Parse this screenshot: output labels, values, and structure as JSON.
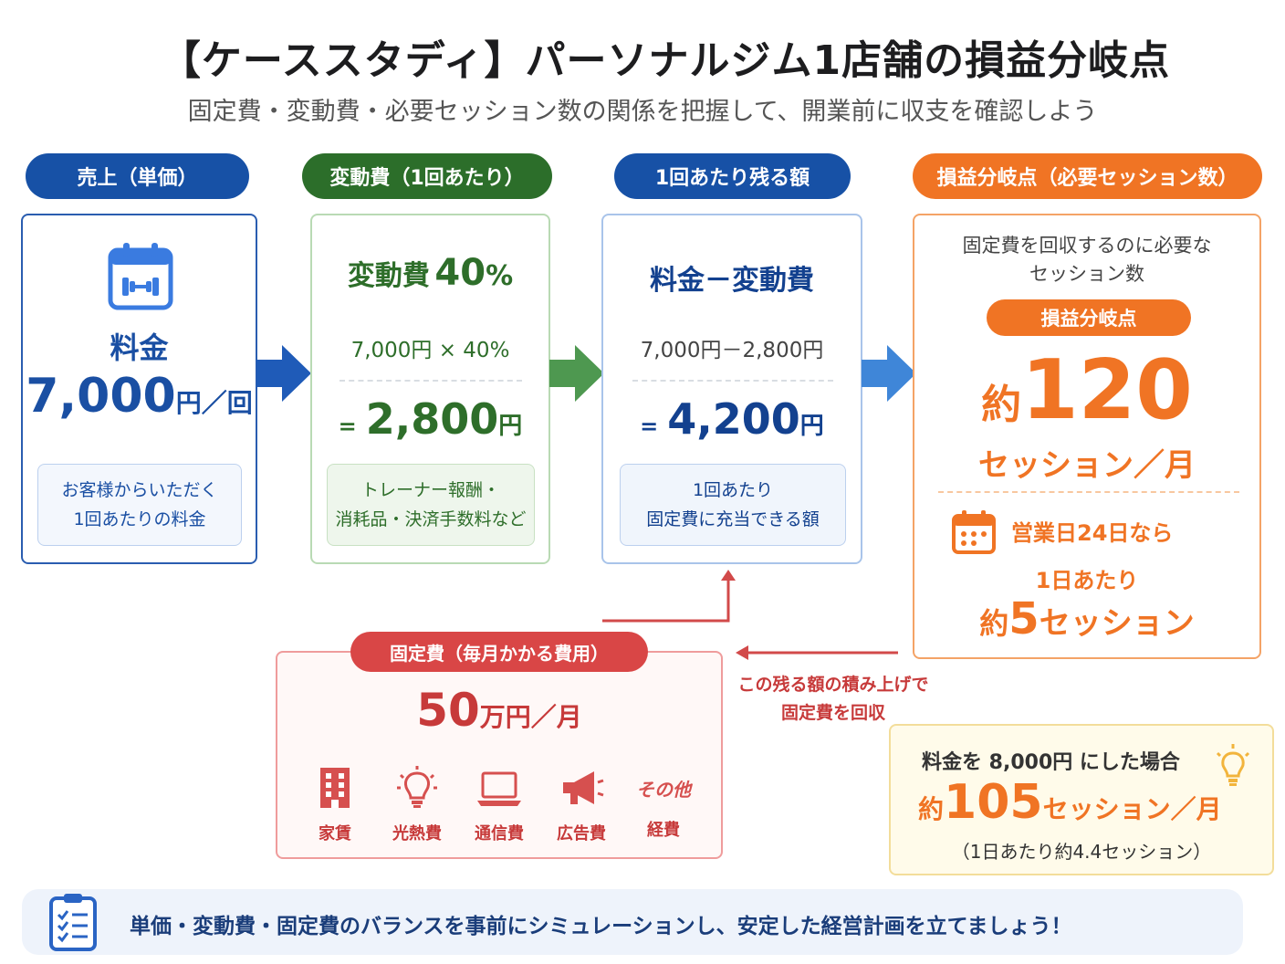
{
  "title": "【ケーススタディ】パーソナルジム1店舗の損益分岐点",
  "subtitle": "固定費・変動費・必要セッション数の関係を把握して、開業前に収支を確認しよう",
  "colors": {
    "blue": "#1a4fa3",
    "green": "#2e6e2a",
    "navy": "#13418f",
    "orange": "#f07424",
    "red": "#c73a3a"
  },
  "sales": {
    "header": "売上（単価）",
    "icon": "calendar-dumbbell-icon",
    "label": "料金",
    "amount": "7,000",
    "unit": "円／回",
    "note_line1": "お客様からいただく",
    "note_line2": "1回あたりの料金"
  },
  "variable": {
    "header": "変動費（1回あたり）",
    "title_text": "変動費",
    "rate": "40",
    "rate_unit": "%",
    "formula": "7,000円 × 40%",
    "eq": "=",
    "result": "2,800",
    "result_unit": "円",
    "note_line1": "トレーナー報酬・",
    "note_line2": "消耗品・決済手数料など"
  },
  "remain": {
    "header": "1回あたり残る額",
    "title_text": "料金－変動費",
    "formula": "7,000円－2,800円",
    "eq": "=",
    "result": "4,200",
    "result_unit": "円",
    "note_line1": "1回あたり",
    "note_line2": "固定費に充当できる額"
  },
  "breakeven": {
    "header": "損益分岐点（必要セッション数）",
    "desc_line1": "固定費を回収するのに必要な",
    "desc_line2": "セッション数",
    "badge": "損益分岐点",
    "prefix": "約",
    "value": "120",
    "unit": "セッション／月",
    "days_text": "営業日24日なら",
    "per_day": "1日あたり",
    "per_day_prefix": "約",
    "per_day_value": "5",
    "per_day_unit": "セッション"
  },
  "fixed": {
    "header": "固定費（毎月かかる費用）",
    "amount": "50",
    "unit": "万円／月",
    "items": [
      {
        "icon": "building-icon",
        "label": "家賃"
      },
      {
        "icon": "lightbulb-icon",
        "label": "光熱費"
      },
      {
        "icon": "laptop-icon",
        "label": "通信費"
      },
      {
        "icon": "megaphone-icon",
        "label": "広告費"
      },
      {
        "icon": "other-icon",
        "label": "経費",
        "icon_text": "その他"
      }
    ]
  },
  "recover_note_line1": "この残る額の積み上げで",
  "recover_note_line2": "固定費を回収",
  "alt": {
    "line1": "料金を 8,000円 にした場合",
    "prefix": "約",
    "value": "105",
    "unit": "セッション／月",
    "sub": "（1日あたり約4.4セッション）"
  },
  "footer": {
    "icon": "clipboard-checklist-icon",
    "text": "単価・変動費・固定費のバランスを事前にシミュレーションし、安定した経営計画を立てましょう！"
  }
}
